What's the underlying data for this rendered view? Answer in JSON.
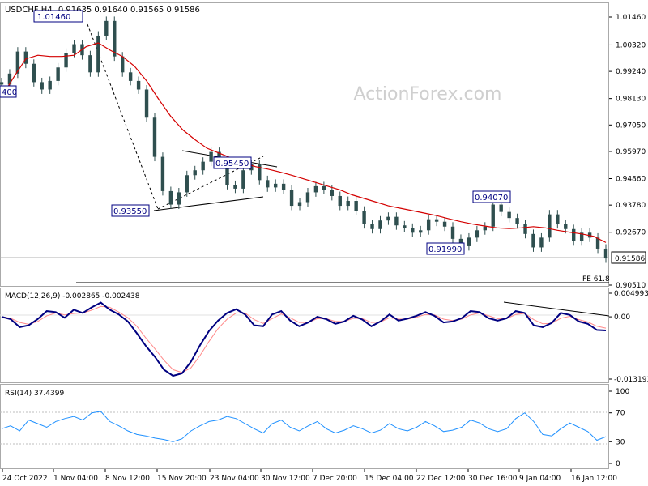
{
  "chart_data": [
    {
      "panel": "price",
      "type": "candlestick",
      "title": "USDCHF,H4",
      "ohlc_text": "0.91635 0.91640 0.91565 0.91586",
      "watermark": "ActionForex.com",
      "ylim": [
        0.9051,
        1.0146
      ],
      "y_ticks": [
        "1.01460",
        "1.00320",
        "0.99240",
        "0.98130",
        "0.97050",
        "0.95970",
        "0.94860",
        "0.93780",
        "0.92670",
        "0.91586",
        "0.90510"
      ],
      "last_price": "0.91586",
      "annotations": [
        "1.01460",
        "0.95450",
        "0.93550",
        "0.94070",
        "0.91990",
        "400"
      ],
      "fe_label": "FE 61.8",
      "close_series": [
        0.987,
        0.9915,
        1.0005,
        0.9955,
        0.988,
        0.985,
        0.9885,
        0.994,
        1.0,
        1.0035,
        0.999,
        0.992,
        1.007,
        1.013,
        0.9985,
        0.992,
        0.9885,
        0.985,
        0.9735,
        0.9575,
        0.9435,
        0.938,
        0.943,
        0.95,
        0.952,
        0.9555,
        0.9595,
        0.9545,
        0.946,
        0.9445,
        0.952,
        0.9545,
        0.948,
        0.945,
        0.9465,
        0.944,
        0.9375,
        0.939,
        0.943,
        0.9455,
        0.944,
        0.9415,
        0.9375,
        0.9395,
        0.9355,
        0.93,
        0.928,
        0.9315,
        0.933,
        0.9295,
        0.9285,
        0.9265,
        0.9275,
        0.932,
        0.931,
        0.929,
        0.924,
        0.921,
        0.9245,
        0.9275,
        0.929,
        0.938,
        0.935,
        0.9325,
        0.93,
        0.926,
        0.9205,
        0.9245,
        0.934,
        0.93,
        0.928,
        0.923,
        0.9265,
        0.9245,
        0.92,
        0.916
      ],
      "ma_series": [
        0.982,
        0.99,
        0.9975,
        0.999,
        0.9985,
        0.9985,
        0.999,
        1.0025,
        1.004,
        1.001,
        0.9985,
        0.9945,
        0.9885,
        0.981,
        0.974,
        0.9685,
        0.9645,
        0.961,
        0.959,
        0.957,
        0.955,
        0.9535,
        0.9525,
        0.9513,
        0.95,
        0.9485,
        0.947,
        0.9455,
        0.944,
        0.942,
        0.9405,
        0.939,
        0.9375,
        0.9365,
        0.9355,
        0.9345,
        0.9335,
        0.9322,
        0.931,
        0.93,
        0.9292,
        0.9285,
        0.9282,
        0.9285,
        0.929,
        0.9285,
        0.9275,
        0.9267,
        0.926,
        0.925,
        0.9225
      ]
    },
    {
      "panel": "macd",
      "type": "line",
      "title": "MACD(12,26,9) -0.002865 -0.002438",
      "ylim": [
        -0.013193,
        0.004993
      ],
      "y_ticks": [
        "0.004993",
        "0.00",
        "-0.013193"
      ],
      "series": [
        {
          "values": [
            0.0,
            -0.0005,
            -0.0022,
            -0.0018,
            -0.0005,
            0.0012,
            0.001,
            -0.0002,
            0.0015,
            0.0008,
            0.002,
            0.003,
            0.0015,
            0.0005,
            -0.001,
            -0.0035,
            -0.0062,
            -0.0085,
            -0.0112,
            -0.0125,
            -0.012,
            -0.0095,
            -0.006,
            -0.003,
            -0.0008,
            0.0008,
            0.0016,
            0.0005,
            -0.0018,
            -0.002,
            0.0005,
            0.0012,
            -0.0008,
            -0.002,
            -0.0012,
            0.0,
            -0.0005,
            -0.0015,
            -0.001,
            0.0002,
            -0.0006,
            -0.002,
            -0.001,
            0.0005,
            -0.0008,
            -0.0004,
            0.0002,
            0.001,
            0.0002,
            -0.0012,
            -0.001,
            -0.0003,
            0.0012,
            0.001,
            -0.0003,
            -0.0008,
            -0.0003,
            0.0012,
            0.0008,
            -0.0018,
            -0.0022,
            -0.0013,
            0.0008,
            0.0004,
            -0.001,
            -0.0015,
            -0.0028,
            -0.0029
          ]
        },
        {
          "values": [
            0.0,
            -0.0003,
            -0.0012,
            -0.0016,
            -0.001,
            0.0002,
            0.0008,
            0.0004,
            0.0007,
            0.0008,
            0.0014,
            0.0022,
            0.002,
            0.001,
            -0.0002,
            -0.002,
            -0.0045,
            -0.0068,
            -0.0092,
            -0.0112,
            -0.0118,
            -0.0108,
            -0.0082,
            -0.0052,
            -0.0025,
            -0.0005,
            0.0008,
            0.0008,
            -0.0006,
            -0.0014,
            -0.0004,
            0.0006,
            -0.0002,
            -0.0012,
            -0.0012,
            -0.0004,
            -0.0004,
            -0.001,
            -0.001,
            -0.0003,
            -0.0004,
            -0.0012,
            -0.0011,
            -0.0002,
            -0.0005,
            -0.0005,
            -0.0001,
            0.0005,
            0.0004,
            -0.0005,
            -0.0008,
            -0.0005,
            0.0004,
            0.0008,
            0.0002,
            -0.0004,
            -0.0004,
            0.0005,
            0.0007,
            -0.0006,
            -0.0015,
            -0.0014,
            -0.0003,
            0.0001,
            -0.0006,
            -0.0011,
            -0.002,
            -0.0024
          ]
        }
      ]
    },
    {
      "panel": "rsi",
      "type": "line",
      "title": "RSI(14) 37.4399",
      "ylim": [
        0,
        100
      ],
      "y_ticks": [
        "100",
        "70",
        "30",
        "0"
      ],
      "x_ticks": [
        "24 Oct 2022",
        "1 Nov 04:00",
        "8 Nov 12:00",
        "15 Nov 20:00",
        "23 Nov 04:00",
        "30 Nov 12:00",
        "7 Dec 20:00",
        "15 Dec 04:00",
        "22 Dec 12:00",
        "30 Dec 16:00",
        "9 Jan 04:00",
        "16 Jan 12:00"
      ],
      "values": [
        48,
        52,
        45,
        60,
        55,
        50,
        58,
        62,
        65,
        60,
        70,
        72,
        58,
        52,
        45,
        40,
        38,
        35,
        33,
        30,
        34,
        45,
        52,
        58,
        60,
        65,
        62,
        55,
        48,
        42,
        55,
        60,
        50,
        45,
        52,
        58,
        48,
        42,
        46,
        52,
        48,
        42,
        46,
        55,
        48,
        45,
        50,
        58,
        52,
        44,
        46,
        50,
        60,
        56,
        48,
        44,
        48,
        62,
        70,
        58,
        40,
        38,
        48,
        56,
        50,
        44,
        32,
        37
      ]
    }
  ]
}
